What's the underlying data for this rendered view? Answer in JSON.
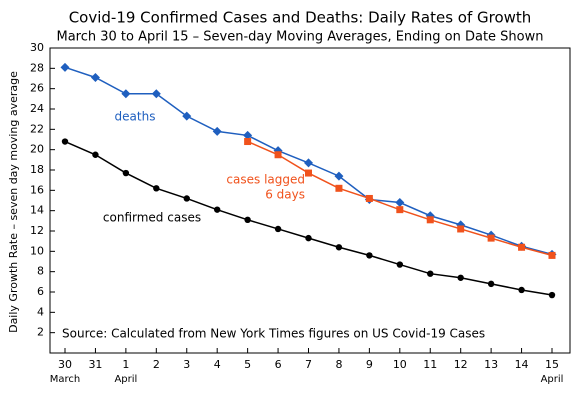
{
  "chart_data": {
    "type": "line",
    "title": "Covid-19 Confirmed Cases and Deaths:  Daily Rates of Growth",
    "subtitle": "March 30 to April 15  –  Seven-day Moving Averages, Ending on Date Shown",
    "y_label": "Daily Growth Rate – seven day moving average",
    "source": "Source:  Calculated from New York Times figures on US Covid-19 Cases",
    "categories": [
      "30",
      "31",
      "1",
      "2",
      "3",
      "4",
      "5",
      "6",
      "7",
      "8",
      "9",
      "10",
      "11",
      "12",
      "13",
      "14",
      "15"
    ],
    "month_labels": [
      "March",
      null,
      "April",
      null,
      null,
      null,
      null,
      null,
      null,
      null,
      null,
      null,
      null,
      null,
      null,
      null,
      "April"
    ],
    "ylim": [
      0,
      30
    ],
    "yticks": [
      2,
      4,
      6,
      8,
      10,
      12,
      14,
      16,
      18,
      20,
      22,
      24,
      26,
      28,
      30
    ],
    "grid": false,
    "series": [
      {
        "label": [
          "deaths"
        ],
        "color": "#1f5fbf",
        "marker": "diamond",
        "values": [
          28.1,
          27.1,
          25.5,
          25.5,
          23.3,
          21.8,
          21.4,
          19.9,
          18.7,
          17.4,
          15.1,
          14.8,
          13.5,
          12.6,
          11.6,
          10.5,
          9.7
        ]
      },
      {
        "label": [
          "confirmed cases"
        ],
        "color": "#000000",
        "marker": "circle",
        "values": [
          20.8,
          19.5,
          17.7,
          16.2,
          15.2,
          14.1,
          13.1,
          12.2,
          11.3,
          10.4,
          9.6,
          8.7,
          7.8,
          7.4,
          6.8,
          6.2,
          5.7
        ]
      },
      {
        "label": [
          "cases lagged",
          "6 days"
        ],
        "color": "#f0521c",
        "marker": "square",
        "values": [
          null,
          null,
          null,
          null,
          null,
          null,
          20.8,
          19.5,
          17.7,
          16.2,
          15.2,
          14.1,
          13.1,
          12.2,
          11.3,
          10.4,
          9.6
        ]
      }
    ]
  }
}
